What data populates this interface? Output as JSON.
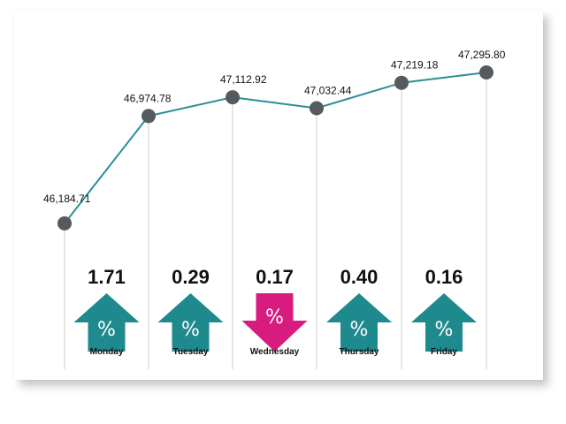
{
  "chart_data": {
    "type": "line",
    "points": [
      {
        "label": "46,184.71",
        "value": 46184.71
      },
      {
        "label": "46,974.78",
        "value": 46974.78
      },
      {
        "label": "47,112.92",
        "value": 47112.92
      },
      {
        "label": "47,032.44",
        "value": 47032.44
      },
      {
        "label": "47,219.18",
        "value": 47219.18
      },
      {
        "label": "47,295.80",
        "value": 47295.8
      }
    ],
    "ylim": [
      45950,
      47380
    ],
    "days": [
      {
        "name": "Monday",
        "change": "1.71",
        "direction": "up"
      },
      {
        "name": "Tuesday",
        "change": "0.29",
        "direction": "up"
      },
      {
        "name": "Wednesday",
        "change": "0.17",
        "direction": "down"
      },
      {
        "name": "Thursday",
        "change": "0.40",
        "direction": "up"
      },
      {
        "name": "Friday",
        "change": "0.16",
        "direction": "up"
      }
    ],
    "percent_symbol": "%",
    "grid": "vertical drop lines at each point",
    "colors": {
      "line": "#2a8f96",
      "marker": "#555a5e",
      "up_arrow": "#1f8a8e",
      "down_arrow": "#d81b7f",
      "drop_line": "#cfcfcf"
    }
  }
}
